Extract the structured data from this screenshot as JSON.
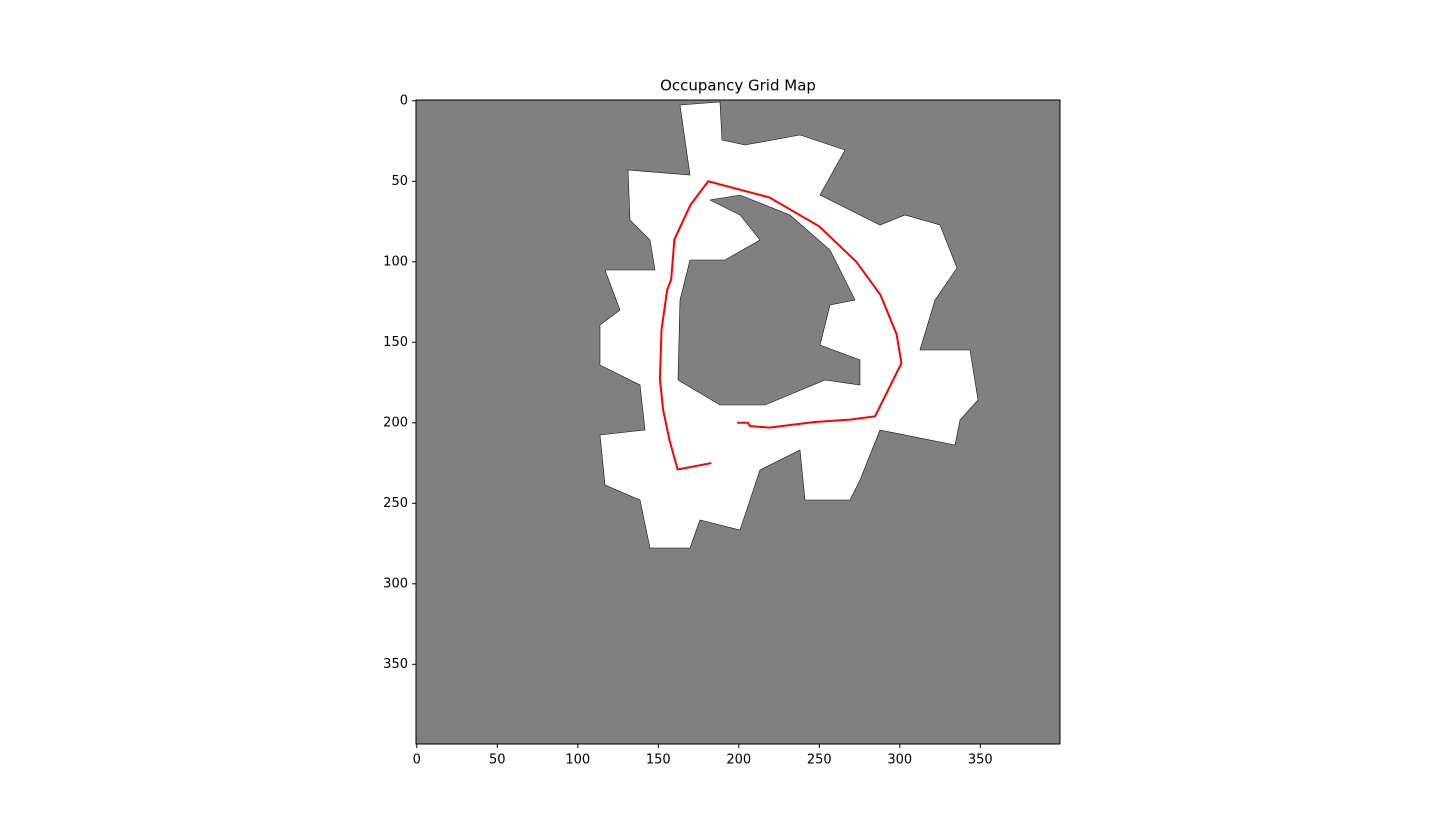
{
  "chart_data": {
    "type": "line",
    "title": "Occupancy Grid Map",
    "x": [
      199,
      205.7,
      207,
      219,
      247,
      269,
      284.6,
      301,
      298,
      288,
      273,
      250,
      219,
      181,
      170,
      160,
      158,
      155.5,
      152,
      151,
      153,
      157,
      162,
      183
    ],
    "values": [
      200,
      200,
      202,
      203,
      199.5,
      198,
      196,
      163,
      145,
      120.6,
      100,
      78,
      60,
      50,
      64.6,
      86,
      111,
      117.5,
      142,
      173,
      192,
      211,
      229,
      225
    ],
    "color": "#ff0000",
    "xlim": [
      -0.5,
      399.5
    ],
    "ylim": [
      399.5,
      -0.5
    ],
    "xticks": [
      0,
      50,
      100,
      150,
      200,
      250,
      300,
      350
    ],
    "yticks": [
      0,
      50,
      100,
      150,
      200,
      250,
      300,
      350
    ]
  }
}
